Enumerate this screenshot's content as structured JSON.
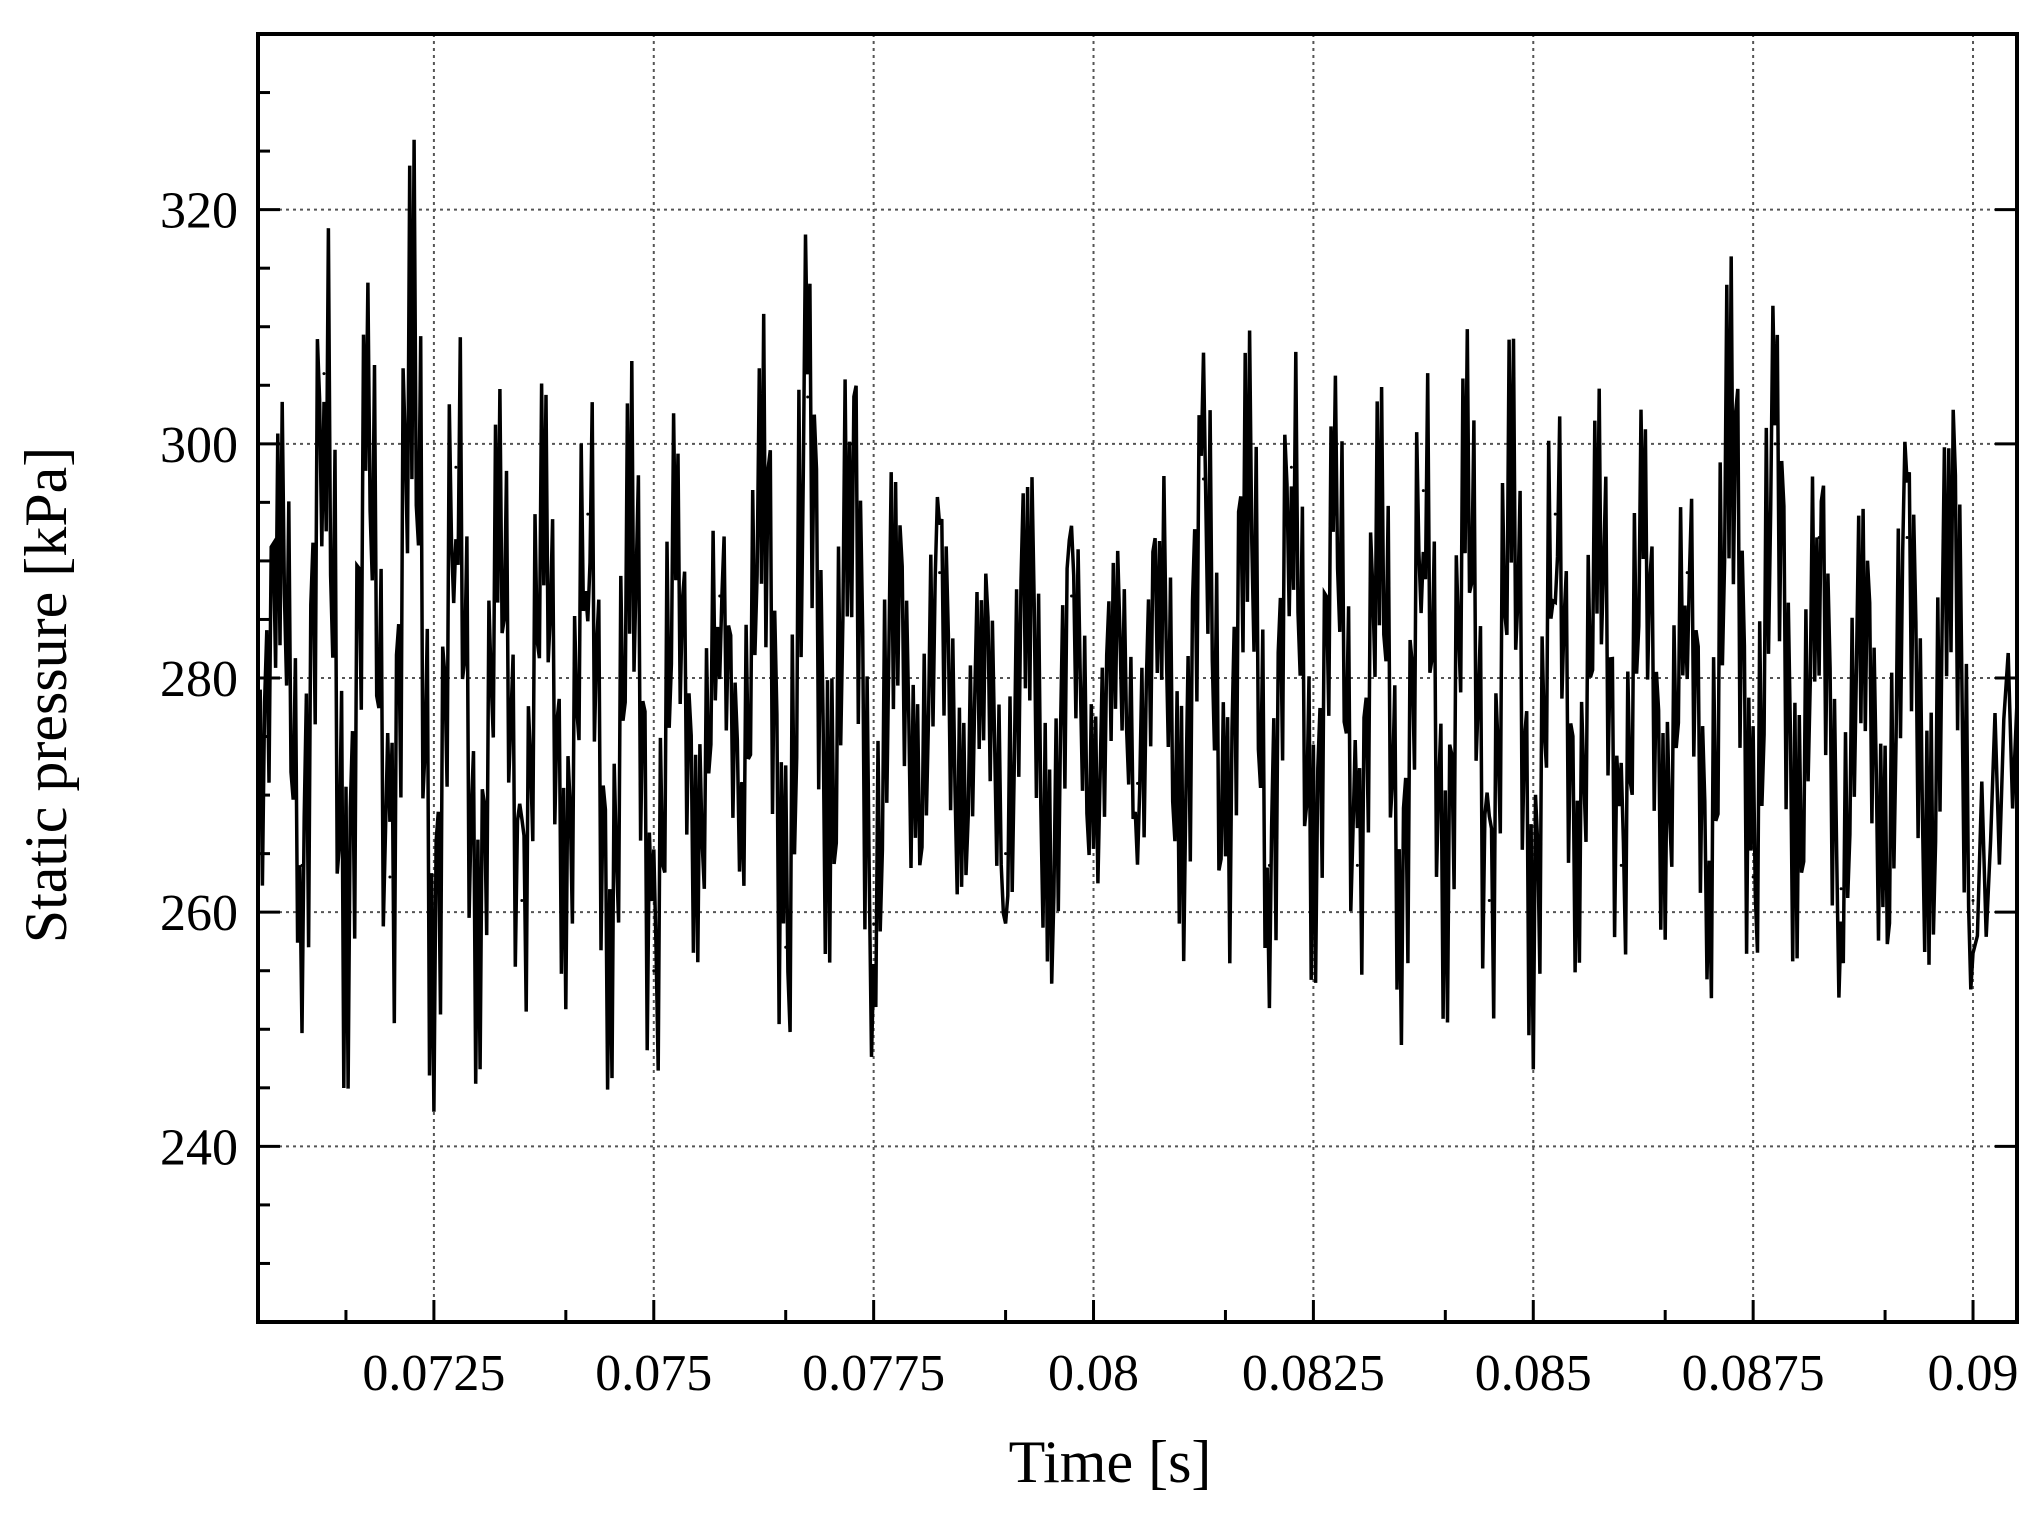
{
  "chart_data": {
    "type": "line",
    "title": "",
    "xlabel": "Time [s]",
    "ylabel": "Static pressure [kPa]",
    "xlim": [
      0.0705,
      0.0905
    ],
    "ylim": [
      225,
      335
    ],
    "grid": true,
    "legend": "none",
    "x_ticks": [
      0.0725,
      0.075,
      0.0775,
      0.08,
      0.0825,
      0.085,
      0.0875,
      0.09
    ],
    "x_tick_labels": [
      "0.0725",
      "0.075",
      "0.0775",
      "0.08",
      "0.0825",
      "0.085",
      "0.0875",
      "0.09"
    ],
    "y_ticks": [
      240,
      260,
      280,
      300,
      320
    ],
    "y_tick_labels": [
      "240",
      "260",
      "280",
      "300",
      "320"
    ],
    "series": [
      {
        "color": "#000000",
        "x": [
          0.0705,
          0.07075,
          0.071,
          0.07125,
          0.0715,
          0.07175,
          0.072,
          0.07225,
          0.0725,
          0.07275,
          0.073,
          0.07325,
          0.0735,
          0.07375,
          0.074,
          0.07425,
          0.0745,
          0.07475,
          0.075,
          0.07525,
          0.0755,
          0.07575,
          0.076,
          0.07625,
          0.0765,
          0.07675,
          0.077,
          0.07725,
          0.0775,
          0.07775,
          0.078,
          0.07825,
          0.0785,
          0.07875,
          0.079,
          0.07925,
          0.0795,
          0.07975,
          0.08,
          0.08025,
          0.0805,
          0.08075,
          0.081,
          0.08125,
          0.0815,
          0.08175,
          0.082,
          0.08225,
          0.0825,
          0.08275,
          0.083,
          0.08325,
          0.0835,
          0.08375,
          0.084,
          0.08425,
          0.0845,
          0.08475,
          0.085,
          0.08525,
          0.0855,
          0.08575,
          0.086,
          0.08625,
          0.0865,
          0.08675,
          0.087,
          0.08725,
          0.0875,
          0.08775,
          0.088,
          0.08825,
          0.0885,
          0.08875,
          0.089,
          0.08925,
          0.0895,
          0.08975,
          0.09,
          0.0905
        ],
        "y": [
          270,
          293,
          264,
          306,
          259,
          300,
          263,
          309,
          258,
          298,
          259,
          292,
          261,
          293,
          264,
          294,
          258,
          293,
          255,
          290,
          265,
          287,
          271,
          298,
          257,
          304,
          266,
          300,
          259,
          290,
          268,
          289,
          267,
          284,
          265,
          291,
          261,
          287,
          268,
          285,
          271,
          290,
          266,
          297,
          265,
          298,
          264,
          298,
          265,
          294,
          264,
          293,
          262,
          296,
          263,
          296,
          261,
          296,
          260,
          294,
          266,
          293,
          264,
          292,
          267,
          289,
          264,
          303,
          263,
          300,
          265,
          292,
          262,
          287,
          262,
          292,
          263,
          296,
          261,
          278
        ]
      }
    ]
  }
}
